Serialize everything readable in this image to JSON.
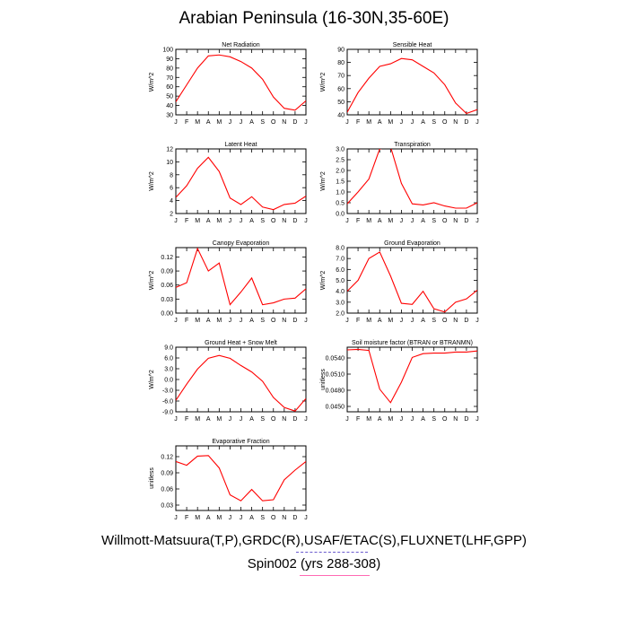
{
  "title": "Arabian Peninsula (16-30N,35-60E)",
  "footer": {
    "sources": "Willmott-Matsuura(T,P),GRDC(R),USAF/ETAC(S),FLUXNET(LHF,GPP)",
    "run": "Spin002 (yrs 288-308)"
  },
  "colors": {
    "line": "#ff0000",
    "axis": "#000000",
    "underline_sources": "#6a5acd",
    "underline_run": "#ff69b4"
  },
  "chart_data": [
    {
      "type": "line",
      "title": "Net Radiation",
      "ylabel": "W/m^2",
      "xlabel": "",
      "categories": [
        "J",
        "F",
        "M",
        "A",
        "M",
        "J",
        "J",
        "A",
        "S",
        "O",
        "N",
        "D",
        "J"
      ],
      "series": [
        {
          "values": [
            44,
            62,
            80,
            93,
            94,
            92,
            87,
            80,
            68,
            49,
            37,
            35,
            45
          ]
        }
      ],
      "ylim": [
        30,
        100
      ],
      "yticks": [
        30,
        40,
        50,
        60,
        70,
        80,
        90,
        100
      ],
      "ytick_labels": [
        "30",
        "40",
        "50",
        "60",
        "70",
        "80",
        "90",
        "100"
      ]
    },
    {
      "type": "line",
      "title": "Sensible Heat",
      "ylabel": "W/m^2",
      "xlabel": "",
      "categories": [
        "J",
        "F",
        "M",
        "A",
        "M",
        "J",
        "J",
        "A",
        "S",
        "O",
        "N",
        "D",
        "J"
      ],
      "series": [
        {
          "values": [
            42,
            57,
            68,
            77,
            79,
            83,
            82,
            77,
            72,
            63,
            49,
            41,
            44
          ]
        }
      ],
      "ylim": [
        40,
        90
      ],
      "yticks": [
        40,
        50,
        60,
        70,
        80,
        90
      ],
      "ytick_labels": [
        "40",
        "50",
        "60",
        "70",
        "80",
        "90"
      ]
    },
    {
      "type": "line",
      "title": "Latent Heat",
      "ylabel": "W/m^2",
      "xlabel": "",
      "categories": [
        "J",
        "F",
        "M",
        "A",
        "M",
        "J",
        "J",
        "A",
        "S",
        "O",
        "N",
        "D",
        "J"
      ],
      "series": [
        {
          "values": [
            4.5,
            6.3,
            9.0,
            10.7,
            8.5,
            4.4,
            3.4,
            4.6,
            3.0,
            2.6,
            3.4,
            3.6,
            4.7
          ]
        }
      ],
      "ylim": [
        2,
        12
      ],
      "yticks": [
        2,
        4,
        6,
        8,
        10,
        12
      ],
      "ytick_labels": [
        "2",
        "4",
        "6",
        "8",
        "10",
        "12"
      ]
    },
    {
      "type": "line",
      "title": "Transpiration",
      "ylabel": "W/m^2",
      "xlabel": "",
      "categories": [
        "J",
        "F",
        "M",
        "A",
        "M",
        "J",
        "J",
        "A",
        "S",
        "O",
        "N",
        "D",
        "J"
      ],
      "series": [
        {
          "values": [
            0.45,
            1.0,
            1.6,
            3.0,
            3.1,
            1.4,
            0.45,
            0.4,
            0.5,
            0.35,
            0.25,
            0.25,
            0.5
          ]
        }
      ],
      "ylim": [
        0,
        3.0
      ],
      "yticks": [
        0,
        0.5,
        1.0,
        1.5,
        2.0,
        2.5,
        3.0
      ],
      "ytick_labels": [
        "0.0",
        "0.5",
        "1.0",
        "1.5",
        "2.0",
        "2.5",
        "3.0"
      ]
    },
    {
      "type": "line",
      "title": "Canopy Evaporation",
      "ylabel": "W/m^2",
      "xlabel": "",
      "categories": [
        "J",
        "F",
        "M",
        "A",
        "M",
        "J",
        "J",
        "A",
        "S",
        "O",
        "N",
        "D",
        "J"
      ],
      "series": [
        {
          "values": [
            0.055,
            0.065,
            0.138,
            0.09,
            0.107,
            0.018,
            0.045,
            0.075,
            0.018,
            0.022,
            0.03,
            0.032,
            0.052
          ]
        }
      ],
      "ylim": [
        0,
        0.14
      ],
      "yticks": [
        0,
        0.03,
        0.06,
        0.09,
        0.12
      ],
      "ytick_labels": [
        "0.00",
        "0.03",
        "0.06",
        "0.09",
        "0.12"
      ]
    },
    {
      "type": "line",
      "title": "Ground Evaporation",
      "ylabel": "W/m^2",
      "xlabel": "",
      "categories": [
        "J",
        "F",
        "M",
        "A",
        "M",
        "J",
        "J",
        "A",
        "S",
        "O",
        "N",
        "D",
        "J"
      ],
      "series": [
        {
          "values": [
            4.0,
            5.0,
            7.0,
            7.6,
            5.4,
            2.9,
            2.8,
            4.0,
            2.4,
            2.1,
            3.0,
            3.3,
            4.1
          ]
        }
      ],
      "ylim": [
        2.0,
        8.0
      ],
      "yticks": [
        2,
        3,
        4,
        5,
        6,
        7,
        8
      ],
      "ytick_labels": [
        "2.0",
        "3.0",
        "4.0",
        "5.0",
        "6.0",
        "7.0",
        "8.0"
      ]
    },
    {
      "type": "line",
      "title": "Ground Heat + Snow Melt",
      "ylabel": "W/m^2",
      "xlabel": "",
      "categories": [
        "J",
        "F",
        "M",
        "A",
        "M",
        "J",
        "J",
        "A",
        "S",
        "O",
        "N",
        "D",
        "J"
      ],
      "series": [
        {
          "values": [
            -5.8,
            -1.3,
            2.9,
            5.9,
            6.7,
            5.9,
            3.9,
            2.1,
            -0.5,
            -5.0,
            -7.8,
            -8.8,
            -5.3
          ]
        }
      ],
      "ylim": [
        -9.0,
        9.0
      ],
      "yticks": [
        -9,
        -6,
        -3,
        0,
        3,
        6,
        9
      ],
      "ytick_labels": [
        "-9.0",
        "-6.0",
        "-3.0",
        "0.0",
        "3.0",
        "6.0",
        "9.0"
      ]
    },
    {
      "type": "line",
      "title": "Soil moisture factor (BTRAN or BTRANMN)",
      "ylabel": "unitless",
      "xlabel": "",
      "categories": [
        "J",
        "F",
        "M",
        "A",
        "M",
        "J",
        "J",
        "A",
        "S",
        "O",
        "N",
        "D",
        "J"
      ],
      "series": [
        {
          "values": [
            0.0555,
            0.0556,
            0.0554,
            0.0482,
            0.0457,
            0.0495,
            0.0541,
            0.0548,
            0.0549,
            0.0549,
            0.0551,
            0.0551,
            0.0553
          ]
        }
      ],
      "ylim": [
        0.044,
        0.056
      ],
      "yticks": [
        0.045,
        0.048,
        0.051,
        0.054
      ],
      "ytick_labels": [
        "0.0450",
        "0.0480",
        "0.0510",
        "0.0540"
      ]
    },
    {
      "type": "line",
      "title": "Evaporative Fraction",
      "ylabel": "unitless",
      "xlabel": "",
      "categories": [
        "J",
        "F",
        "M",
        "A",
        "M",
        "J",
        "J",
        "A",
        "S",
        "O",
        "N",
        "D",
        "J"
      ],
      "series": [
        {
          "values": [
            0.111,
            0.104,
            0.121,
            0.122,
            0.099,
            0.049,
            0.038,
            0.059,
            0.038,
            0.04,
            0.077,
            0.095,
            0.111
          ]
        }
      ],
      "ylim": [
        0.02,
        0.14
      ],
      "yticks": [
        0.03,
        0.06,
        0.09,
        0.12
      ],
      "ytick_labels": [
        "0.03",
        "0.06",
        "0.09",
        "0.12"
      ]
    }
  ]
}
